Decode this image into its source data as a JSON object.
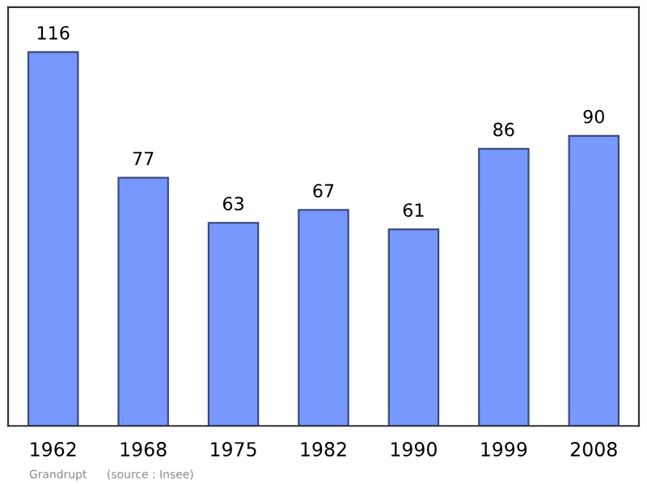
{
  "chart_data": {
    "type": "bar",
    "categories": [
      "1962",
      "1968",
      "1975",
      "1982",
      "1990",
      "1999",
      "2008"
    ],
    "values": [
      116,
      77,
      63,
      67,
      61,
      86,
      90
    ],
    "color": "#7799ff",
    "data_labels": true,
    "grid": false,
    "legend": false,
    "tick_labels": "x",
    "annotations": [
      "Grandrupt",
      "(source : Insee)"
    ]
  }
}
